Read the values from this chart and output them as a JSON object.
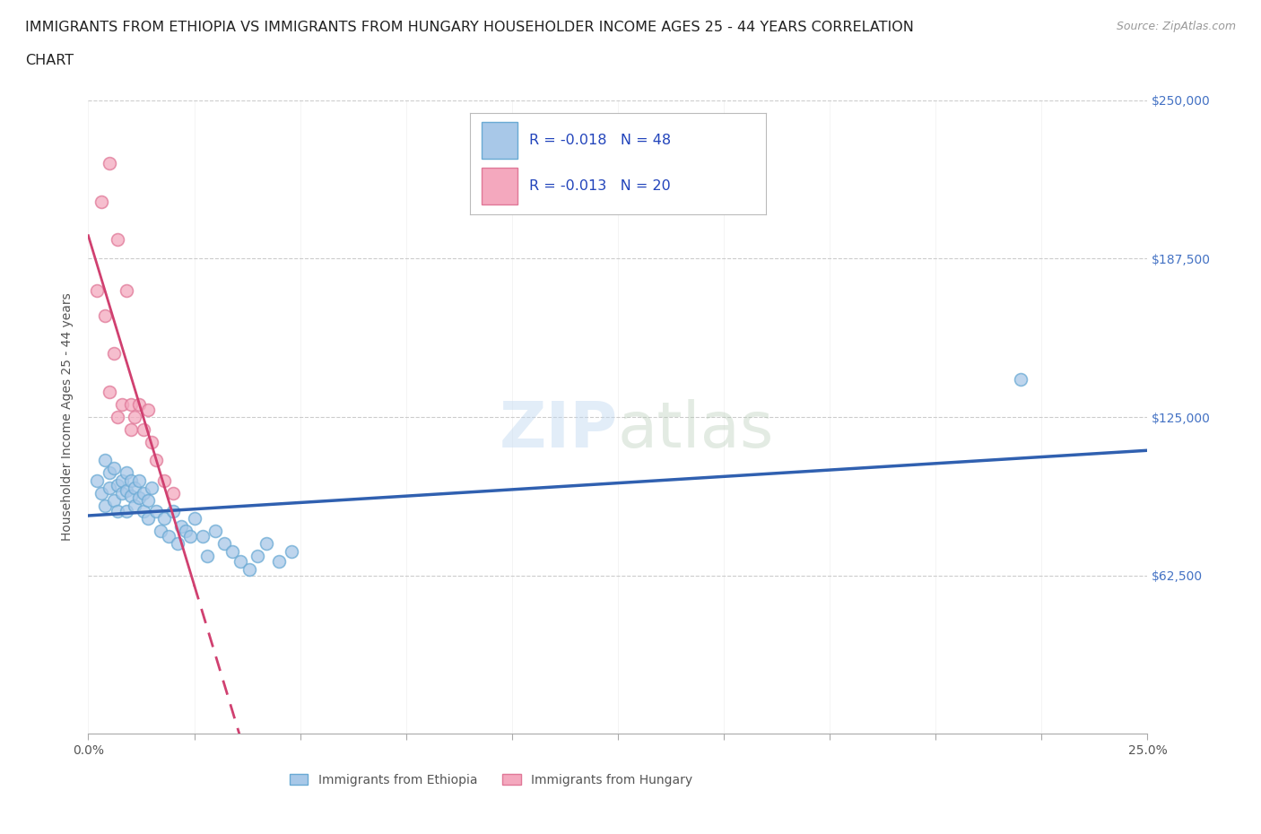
{
  "title_line1": "IMMIGRANTS FROM ETHIOPIA VS IMMIGRANTS FROM HUNGARY HOUSEHOLDER INCOME AGES 25 - 44 YEARS CORRELATION",
  "title_line2": "CHART",
  "source": "Source: ZipAtlas.com",
  "ylabel": "Householder Income Ages 25 - 44 years",
  "xlim": [
    0,
    0.25
  ],
  "ylim": [
    0,
    250000
  ],
  "xticks": [
    0.0,
    0.025,
    0.05,
    0.075,
    0.1,
    0.125,
    0.15,
    0.175,
    0.2,
    0.225,
    0.25
  ],
  "xtick_labels_show": {
    "0.0": "0.0%",
    "0.25": "25.0%"
  },
  "yticks": [
    0,
    62500,
    125000,
    187500,
    250000
  ],
  "ytick_labels": [
    "",
    "$62,500",
    "$125,000",
    "$187,500",
    "$250,000"
  ],
  "ethiopia_color": "#a8c8e8",
  "hungary_color": "#f4a8be",
  "ethiopia_edge": "#6aaad4",
  "hungary_edge": "#e07898",
  "trend_ethiopia_color": "#3060b0",
  "trend_hungary_color": "#d04070",
  "ethiopia_R": -0.018,
  "ethiopia_N": 48,
  "hungary_R": -0.013,
  "hungary_N": 20,
  "legend_label_1": "Immigrants from Ethiopia",
  "legend_label_2": "Immigrants from Hungary",
  "watermark": "ZIPatlas",
  "background_color": "#ffffff",
  "grid_color": "#cccccc",
  "ethiopia_x": [
    0.002,
    0.003,
    0.004,
    0.004,
    0.005,
    0.005,
    0.006,
    0.006,
    0.007,
    0.007,
    0.008,
    0.008,
    0.009,
    0.009,
    0.009,
    0.01,
    0.01,
    0.011,
    0.011,
    0.012,
    0.012,
    0.013,
    0.013,
    0.014,
    0.014,
    0.015,
    0.016,
    0.017,
    0.018,
    0.019,
    0.02,
    0.021,
    0.022,
    0.023,
    0.024,
    0.025,
    0.027,
    0.028,
    0.03,
    0.032,
    0.034,
    0.036,
    0.038,
    0.04,
    0.042,
    0.045,
    0.048,
    0.22
  ],
  "ethiopia_y": [
    100000,
    95000,
    108000,
    90000,
    103000,
    97000,
    105000,
    92000,
    98000,
    88000,
    100000,
    95000,
    96000,
    103000,
    88000,
    94000,
    100000,
    90000,
    97000,
    93000,
    100000,
    88000,
    95000,
    92000,
    85000,
    97000,
    88000,
    80000,
    85000,
    78000,
    88000,
    75000,
    82000,
    80000,
    78000,
    85000,
    78000,
    70000,
    80000,
    75000,
    72000,
    68000,
    65000,
    70000,
    75000,
    68000,
    72000,
    140000
  ],
  "hungary_x": [
    0.002,
    0.003,
    0.004,
    0.005,
    0.005,
    0.006,
    0.007,
    0.007,
    0.008,
    0.009,
    0.01,
    0.01,
    0.011,
    0.012,
    0.013,
    0.014,
    0.015,
    0.016,
    0.018,
    0.02
  ],
  "hungary_y": [
    175000,
    210000,
    165000,
    225000,
    135000,
    150000,
    195000,
    125000,
    130000,
    175000,
    130000,
    120000,
    125000,
    130000,
    120000,
    128000,
    115000,
    108000,
    100000,
    95000
  ],
  "marker_size": 100,
  "marker_alpha": 0.75,
  "title_fontsize": 11.5,
  "axis_fontsize": 10,
  "tick_fontsize": 10,
  "ytick_color": "#4472c4",
  "eth_trend_xlim": [
    0.0,
    0.25
  ],
  "hun_trend_xlim": [
    0.0,
    0.25
  ]
}
